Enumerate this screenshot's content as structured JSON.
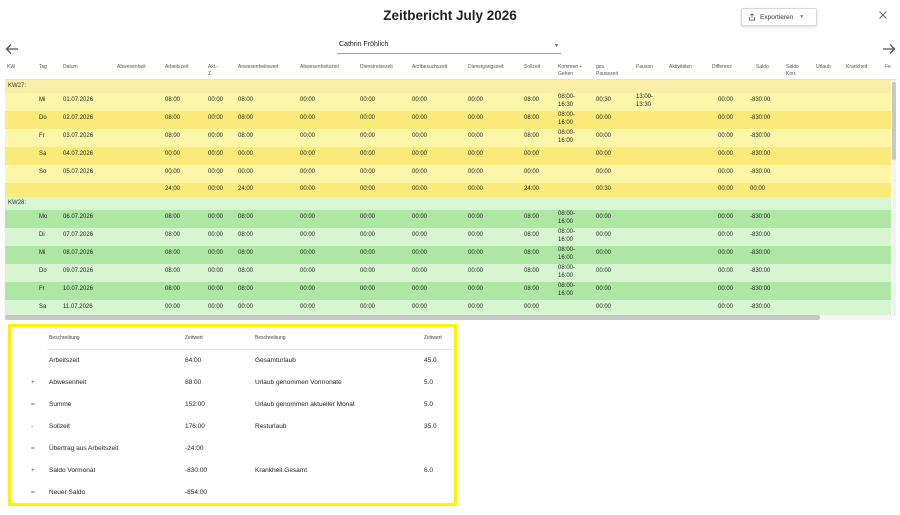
{
  "header": {
    "title": "Zeitbericht July 2026",
    "export_label": "Exportieren",
    "person": "Cathrin Fröhlich"
  },
  "table": {
    "columns": [
      "KW",
      "Tag",
      "Datum",
      "Abwesenheit",
      "Arbeitszeit",
      "Akt.-Z.",
      "Anwesenheitswert",
      "Abwesenheitszeit",
      "Dienstreisezeit",
      "Arztbesuchszeit",
      "Dienstgangszeit",
      "Sollzeit",
      "Kommen + Gehen",
      "ges. Pausezeit",
      "Pausen",
      "Aktivitäten",
      "Differenz",
      "Saldo",
      "Saldo Korr.",
      "Urlaub",
      "Krankheit",
      "Fe"
    ],
    "groups": [
      {
        "label": "KW27:",
        "rows": [
          {
            "tag": "Mi",
            "datum": "01.07.2026",
            "arbeitszeit": "08:00",
            "aktz": "00:00",
            "anwesenheitswert": "08:00",
            "abwesenheitszeit": "00:00",
            "dienstreisezeit": "00:00",
            "arztbesuchszeit": "00:00",
            "dienstgangszeit": "00:00",
            "sollzeit": "08:00",
            "kommen_gehen": [
              "08:00-",
              "16:30"
            ],
            "pausezeit": "00:30",
            "pausen": [
              "13:00-",
              "13:30"
            ],
            "differenz": "00:00",
            "saldo": "-830:00"
          },
          {
            "tag": "Do",
            "datum": "02.07.2026",
            "arbeitszeit": "08:00",
            "aktz": "00:00",
            "anwesenheitswert": "08:00",
            "abwesenheitszeit": "00:00",
            "dienstreisezeit": "00:00",
            "arztbesuchszeit": "00:00",
            "dienstgangszeit": "00:00",
            "sollzeit": "08:00",
            "kommen_gehen": [
              "08:00-",
              "16:00"
            ],
            "pausezeit": "00:00",
            "pausen": [
              "",
              ""
            ],
            "differenz": "00:00",
            "saldo": "-830:00"
          },
          {
            "tag": "Fr",
            "datum": "03.07.2026",
            "arbeitszeit": "08:00",
            "aktz": "00:00",
            "anwesenheitswert": "08:00",
            "abwesenheitszeit": "00:00",
            "dienstreisezeit": "00:00",
            "arztbesuchszeit": "00:00",
            "dienstgangszeit": "00:00",
            "sollzeit": "08:00",
            "kommen_gehen": [
              "08:00-",
              "16:00"
            ],
            "pausezeit": "00:00",
            "pausen": [
              "",
              ""
            ],
            "differenz": "00:00",
            "saldo": "-830:00"
          },
          {
            "tag": "Sa",
            "datum": "04.07.2026",
            "arbeitszeit": "00:00",
            "aktz": "00:00",
            "anwesenheitswert": "00:00",
            "abwesenheitszeit": "00:00",
            "dienstreisezeit": "00:00",
            "arztbesuchszeit": "00:00",
            "dienstgangszeit": "00:00",
            "sollzeit": "00:00",
            "kommen_gehen": [
              "",
              ""
            ],
            "pausezeit": "00:00",
            "pausen": [
              "",
              ""
            ],
            "differenz": "00:00",
            "saldo": "-830:00"
          },
          {
            "tag": "So",
            "datum": "05.07.2026",
            "arbeitszeit": "00:00",
            "aktz": "00:00",
            "anwesenheitswert": "00:00",
            "abwesenheitszeit": "00:00",
            "dienstreisezeit": "00:00",
            "arztbesuchszeit": "00:00",
            "dienstgangszeit": "00:00",
            "sollzeit": "00:00",
            "kommen_gehen": [
              "",
              ""
            ],
            "pausezeit": "00:00",
            "pausen": [
              "",
              ""
            ],
            "differenz": "00:00",
            "saldo": "-830:00"
          }
        ],
        "total": {
          "arbeitszeit": "24:00",
          "aktz": "00:00",
          "anwesenheitswert": "24:00",
          "abwesenheitszeit": "00:00",
          "dienstreisezeit": "00:00",
          "arztbesuchszeit": "00:00",
          "dienstgangszeit": "00:00",
          "sollzeit": "24:00",
          "pausezeit": "00:30",
          "differenz": "00:00",
          "saldo": "00:00"
        }
      },
      {
        "label": "KW28:",
        "rows": [
          {
            "tag": "Mo",
            "datum": "06.07.2026",
            "arbeitszeit": "08:00",
            "aktz": "00:00",
            "anwesenheitswert": "08:00",
            "abwesenheitszeit": "00:00",
            "dienstreisezeit": "00:00",
            "arztbesuchszeit": "00:00",
            "dienstgangszeit": "00:00",
            "sollzeit": "08:00",
            "kommen_gehen": [
              "08:00-",
              "16:00"
            ],
            "pausezeit": "00:00",
            "pausen": [
              "",
              ""
            ],
            "differenz": "00:00",
            "saldo": "-830:00"
          },
          {
            "tag": "Di",
            "datum": "07.07.2026",
            "arbeitszeit": "08:00",
            "aktz": "00:00",
            "anwesenheitswert": "08:00",
            "abwesenheitszeit": "00:00",
            "dienstreisezeit": "00:00",
            "arztbesuchszeit": "00:00",
            "dienstgangszeit": "00:00",
            "sollzeit": "08:00",
            "kommen_gehen": [
              "08:00-",
              "16:00"
            ],
            "pausezeit": "00:00",
            "pausen": [
              "",
              ""
            ],
            "differenz": "00:00",
            "saldo": "-830:00"
          },
          {
            "tag": "Mi",
            "datum": "08.07.2026",
            "arbeitszeit": "08:00",
            "aktz": "00:00",
            "anwesenheitswert": "08:00",
            "abwesenheitszeit": "00:00",
            "dienstreisezeit": "00:00",
            "arztbesuchszeit": "00:00",
            "dienstgangszeit": "00:00",
            "sollzeit": "08:00",
            "kommen_gehen": [
              "08:00-",
              "16:00"
            ],
            "pausezeit": "00:00",
            "pausen": [
              "",
              ""
            ],
            "differenz": "00:00",
            "saldo": "-830:00"
          },
          {
            "tag": "Do",
            "datum": "09.07.2026",
            "arbeitszeit": "08:00",
            "aktz": "00:00",
            "anwesenheitswert": "08:00",
            "abwesenheitszeit": "00:00",
            "dienstreisezeit": "00:00",
            "arztbesuchszeit": "00:00",
            "dienstgangszeit": "00:00",
            "sollzeit": "08:00",
            "kommen_gehen": [
              "08:00-",
              "16:00"
            ],
            "pausezeit": "00:00",
            "pausen": [
              "",
              ""
            ],
            "differenz": "00:00",
            "saldo": "-830:00"
          },
          {
            "tag": "Fr",
            "datum": "10.07.2026",
            "arbeitszeit": "08:00",
            "aktz": "00:00",
            "anwesenheitswert": "08:00",
            "abwesenheitszeit": "00:00",
            "dienstreisezeit": "00:00",
            "arztbesuchszeit": "00:00",
            "dienstgangszeit": "00:00",
            "sollzeit": "08:00",
            "kommen_gehen": [
              "08:00-",
              "16:00"
            ],
            "pausezeit": "00:00",
            "pausen": [
              "",
              ""
            ],
            "differenz": "00:00",
            "saldo": "-830:00"
          },
          {
            "tag": "Sa",
            "datum": "11.07.2026",
            "arbeitszeit": "00:00",
            "aktz": "00:00",
            "anwesenheitswert": "00:00",
            "abwesenheitszeit": "00:00",
            "dienstreisezeit": "00:00",
            "arztbesuchszeit": "00:00",
            "dienstgangszeit": "00:00",
            "sollzeit": "00:00",
            "kommen_gehen": [
              "",
              ""
            ],
            "pausezeit": "00:00",
            "pausen": [
              "",
              ""
            ],
            "differenz": "00:00",
            "saldo": "-830:00"
          }
        ]
      }
    ]
  },
  "summary": {
    "header_beschreibung": "Beschreibung",
    "header_zeitwert": "Zeitwert",
    "left": [
      {
        "op": "",
        "label": "Arbeitszeit",
        "value": "64:00"
      },
      {
        "op": "+",
        "label": "Abwesenheit",
        "value": "88:00"
      },
      {
        "op": "=",
        "label": "Summe",
        "value": "152:00"
      },
      {
        "op": "-",
        "label": "Sollzeit",
        "value": "176:00"
      },
      {
        "op": "=",
        "label": "Übertrag aus Arbeitszeit",
        "value": "-24:00"
      },
      {
        "op": "+",
        "label": "Saldo Vormonat",
        "value": "-830:00"
      },
      {
        "op": "=",
        "label": "Neuer Saldo",
        "value": "-854:00"
      }
    ],
    "right": [
      {
        "label": "Gesamturlaub",
        "value": "45.0"
      },
      {
        "label": "Urlaub genommen Vormonate",
        "value": "5.0"
      },
      {
        "label": "Urlaub genommen aktueller Monat",
        "value": "5.0"
      },
      {
        "label": "Resturlaub",
        "value": "35.0"
      },
      {
        "label": "",
        "value": ""
      },
      {
        "label": "Krankheit Gesamt",
        "value": "6.0"
      }
    ]
  }
}
